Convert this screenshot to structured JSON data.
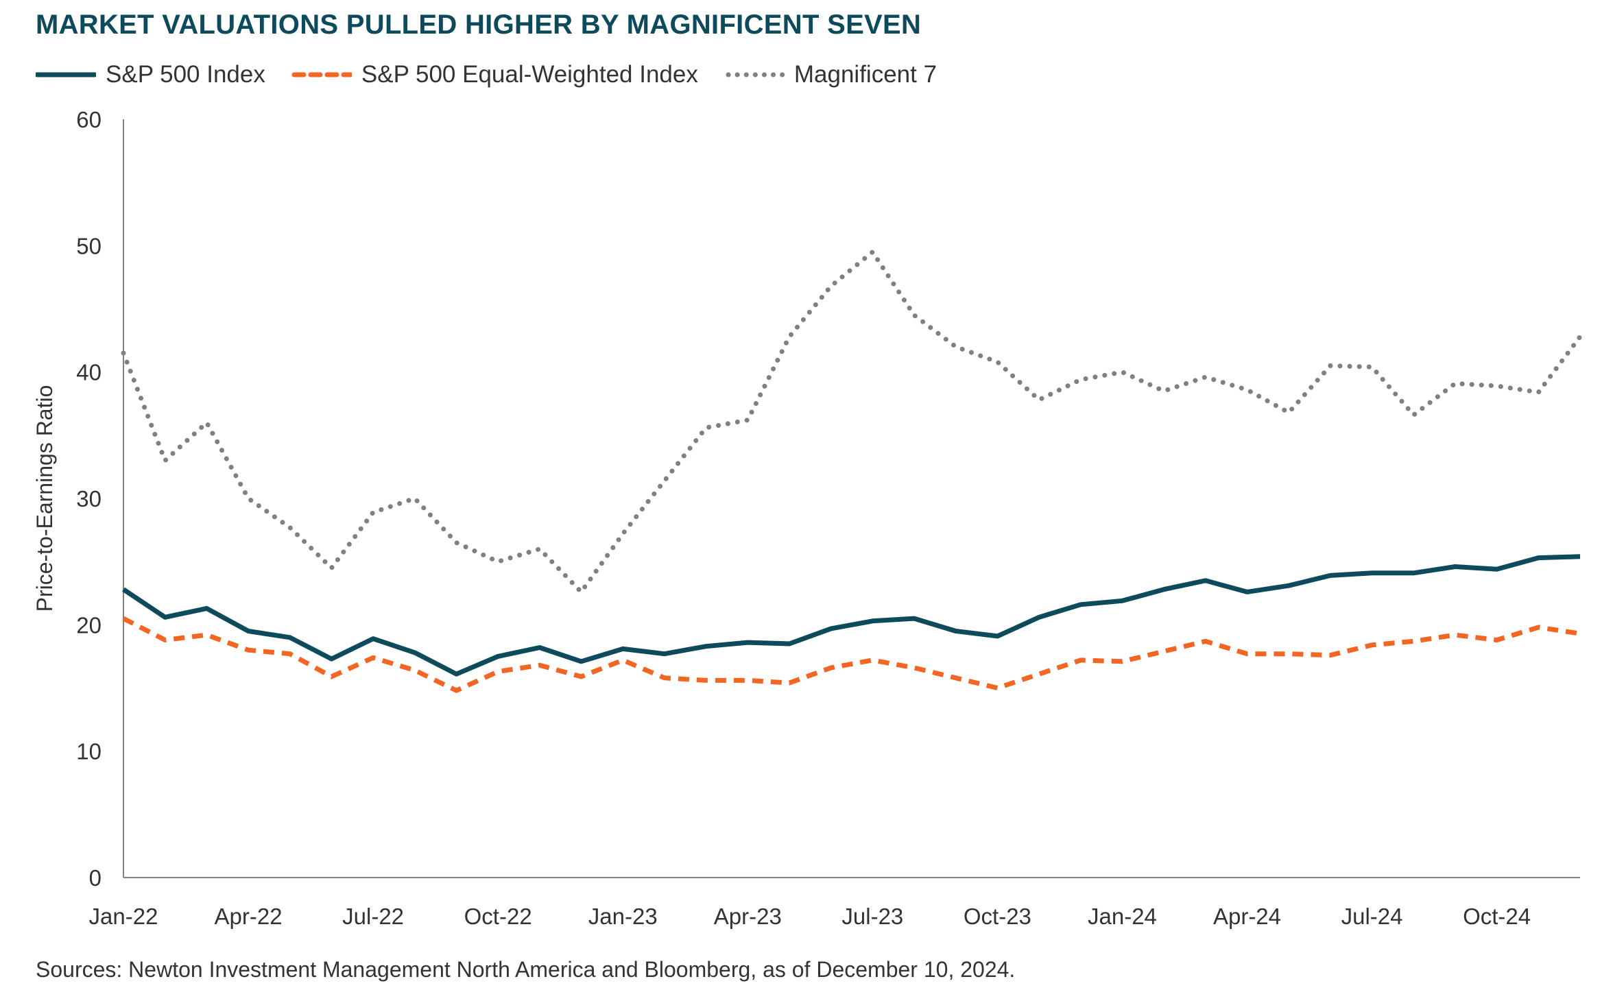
{
  "title": "MARKET VALUATIONS PULLED HIGHER BY MAGNIFICENT SEVEN",
  "source": "Sources: Newton Investment Management North America and Bloomberg, as of December 10, 2024.",
  "chart_data": {
    "type": "line",
    "title": "MARKET VALUATIONS PULLED HIGHER BY MAGNIFICENT SEVEN",
    "xlabel": "",
    "ylabel": "Price-to-Earnings Ratio",
    "ylim": [
      0,
      60
    ],
    "yticks": [
      0,
      10,
      20,
      30,
      40,
      50,
      60
    ],
    "xticks": [
      "Jan-22",
      "Apr-22",
      "Jul-22",
      "Oct-22",
      "Jan-23",
      "Apr-23",
      "Jul-23",
      "Oct-23",
      "Jan-24",
      "Apr-24",
      "Jul-24",
      "Oct-24"
    ],
    "grid": false,
    "legend_position": "top-left",
    "x": [
      "Jan-22",
      "Feb-22",
      "Mar-22",
      "Apr-22",
      "May-22",
      "Jun-22",
      "Jul-22",
      "Aug-22",
      "Sep-22",
      "Oct-22",
      "Nov-22",
      "Dec-22",
      "Jan-23",
      "Feb-23",
      "Mar-23",
      "Apr-23",
      "May-23",
      "Jun-23",
      "Jul-23",
      "Aug-23",
      "Sep-23",
      "Oct-23",
      "Nov-23",
      "Dec-23",
      "Jan-24",
      "Feb-24",
      "Mar-24",
      "Apr-24",
      "May-24",
      "Jun-24",
      "Jul-24",
      "Aug-24",
      "Sep-24",
      "Oct-24",
      "Nov-24",
      "Dec-24"
    ],
    "series": [
      {
        "name": "S&P 500 Index",
        "color": "#0d4a5c",
        "style": "solid",
        "values": [
          22.8,
          20.6,
          21.3,
          19.5,
          19.0,
          17.3,
          18.9,
          17.8,
          16.1,
          17.5,
          18.2,
          17.1,
          18.1,
          17.7,
          18.3,
          18.6,
          18.5,
          19.7,
          20.3,
          20.5,
          19.5,
          19.1,
          20.6,
          21.6,
          21.9,
          22.8,
          23.5,
          22.6,
          23.1,
          23.9,
          24.1,
          24.1,
          24.6,
          24.4,
          25.3,
          25.4
        ]
      },
      {
        "name": "S&P 500 Equal-Weighted Index",
        "color": "#f26522",
        "style": "dashed",
        "values": [
          20.5,
          18.8,
          19.2,
          18.0,
          17.7,
          15.9,
          17.4,
          16.4,
          14.8,
          16.3,
          16.8,
          15.9,
          17.2,
          15.8,
          15.6,
          15.6,
          15.4,
          16.6,
          17.2,
          16.6,
          15.8,
          15.0,
          16.1,
          17.2,
          17.1,
          17.9,
          18.7,
          17.7,
          17.7,
          17.6,
          18.4,
          18.7,
          19.2,
          18.8,
          19.8,
          19.3
        ]
      },
      {
        "name": "Magnificent 7",
        "color": "#808080",
        "style": "dotted",
        "values": [
          41.5,
          33.0,
          36.0,
          30.0,
          27.7,
          24.5,
          28.9,
          30.0,
          26.5,
          25.0,
          26.0,
          22.6,
          27.2,
          31.4,
          35.6,
          36.2,
          42.8,
          46.8,
          49.5,
          44.5,
          42.0,
          40.8,
          37.8,
          39.4,
          40.0,
          38.5,
          39.6,
          38.6,
          36.8,
          40.5,
          40.4,
          36.6,
          39.1,
          38.9,
          38.4,
          42.8
        ]
      }
    ]
  }
}
